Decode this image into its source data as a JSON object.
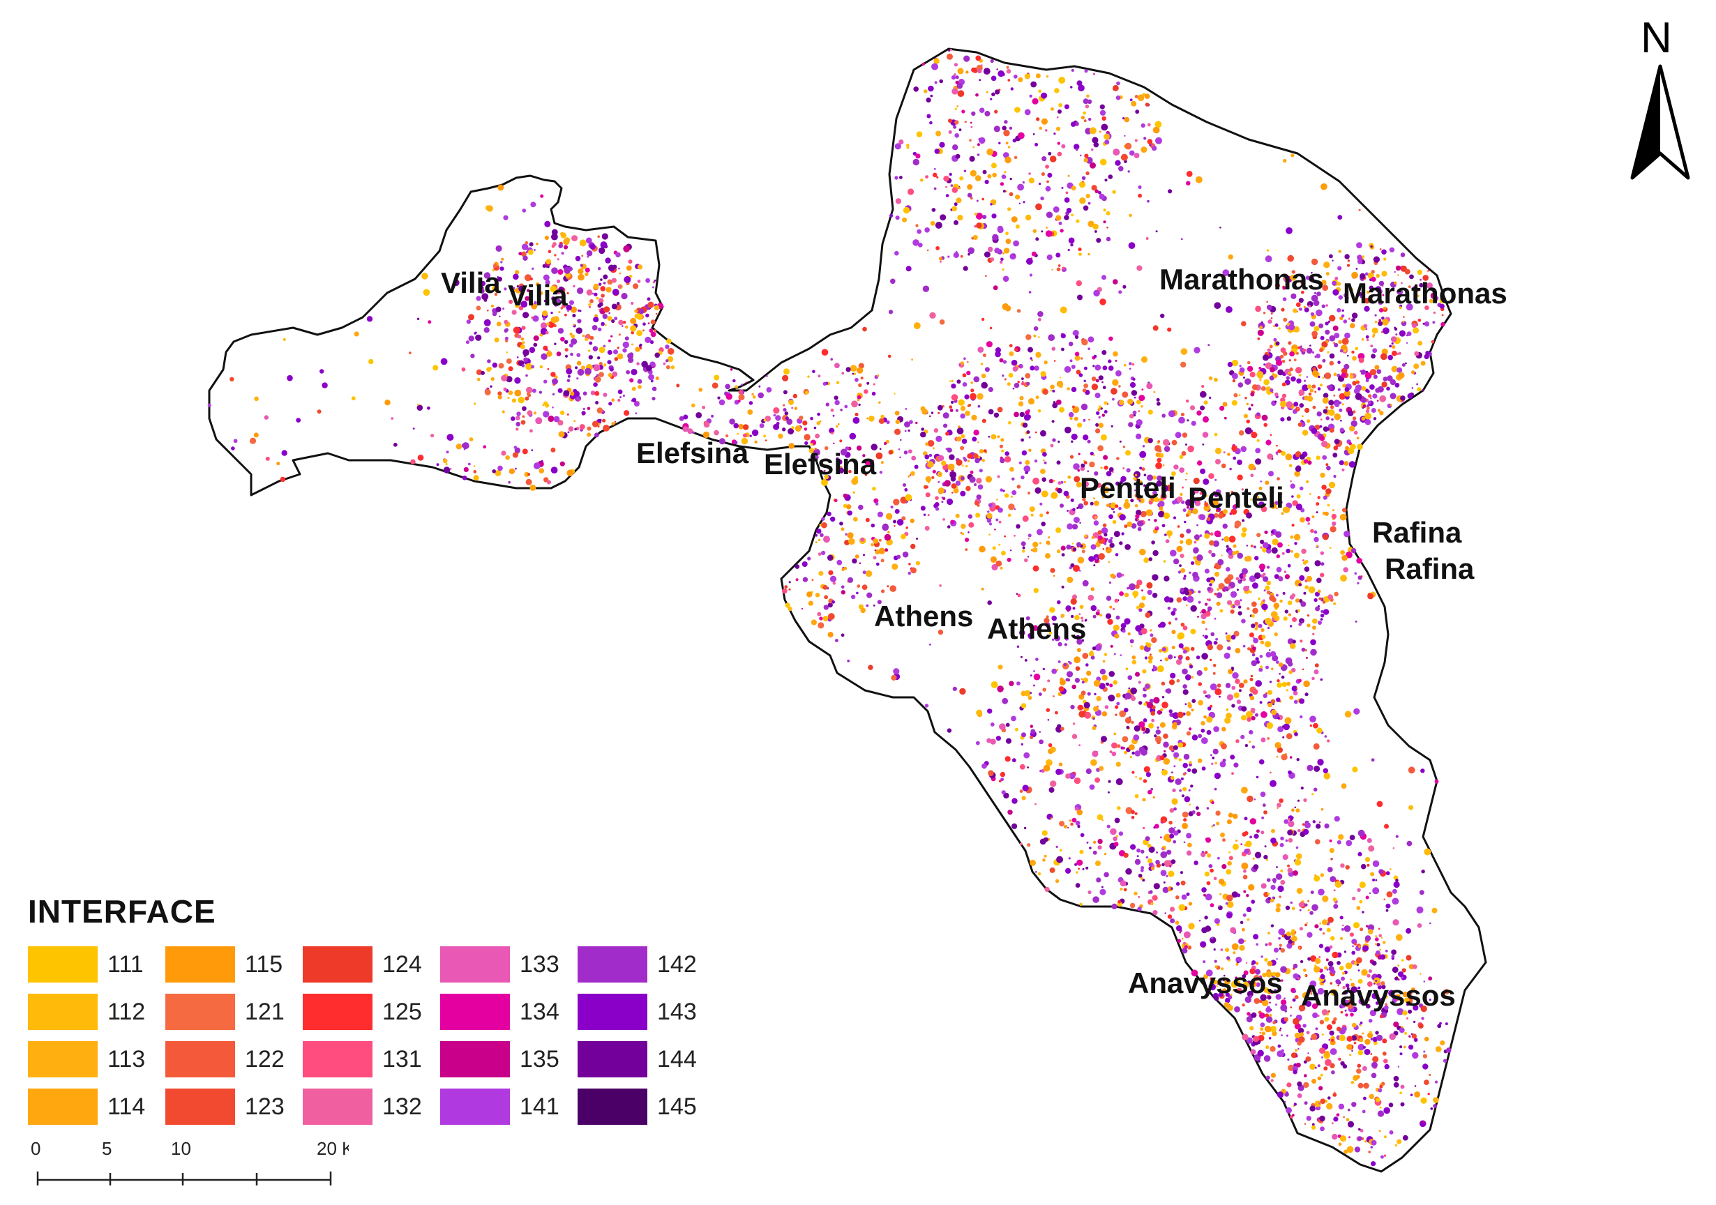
{
  "north_label": "N",
  "legend": {
    "title": "INTERFACE",
    "items": [
      {
        "code": "111",
        "color": "#FFC400"
      },
      {
        "code": "112",
        "color": "#FFBA0A"
      },
      {
        "code": "113",
        "color": "#FFB010"
      },
      {
        "code": "114",
        "color": "#FFA70F"
      },
      {
        "code": "115",
        "color": "#FF9A0A"
      },
      {
        "code": "121",
        "color": "#F56A40"
      },
      {
        "code": "122",
        "color": "#F45A3A"
      },
      {
        "code": "123",
        "color": "#F24A30"
      },
      {
        "code": "124",
        "color": "#EE3A28"
      },
      {
        "code": "125",
        "color": "#FF2D2D"
      },
      {
        "code": "131",
        "color": "#FF4D80"
      },
      {
        "code": "132",
        "color": "#F060A0"
      },
      {
        "code": "133",
        "color": "#E858B4"
      },
      {
        "code": "134",
        "color": "#E400A0"
      },
      {
        "code": "135",
        "color": "#C8008A"
      },
      {
        "code": "141",
        "color": "#B03ADF"
      },
      {
        "code": "142",
        "color": "#A22CCA"
      },
      {
        "code": "143",
        "color": "#8A00C8"
      },
      {
        "code": "144",
        "color": "#73009A"
      },
      {
        "code": "145",
        "color": "#4A0066"
      }
    ]
  },
  "places": [
    {
      "name": "Vilia"
    },
    {
      "name": "Vilia"
    },
    {
      "name": "Marathonas"
    },
    {
      "name": "Marathonas"
    },
    {
      "name": "Elefsina"
    },
    {
      "name": "Elefsina"
    },
    {
      "name": "Penteli"
    },
    {
      "name": "Penteli"
    },
    {
      "name": "Rafina"
    },
    {
      "name": "Rafina"
    },
    {
      "name": "Athens"
    },
    {
      "name": "Athens"
    },
    {
      "name": "Anavyssos"
    },
    {
      "name": "Anavyssos"
    }
  ],
  "scale": {
    "ticks": [
      "0",
      "5",
      "10",
      "20"
    ],
    "unit": "Kilometers"
  }
}
